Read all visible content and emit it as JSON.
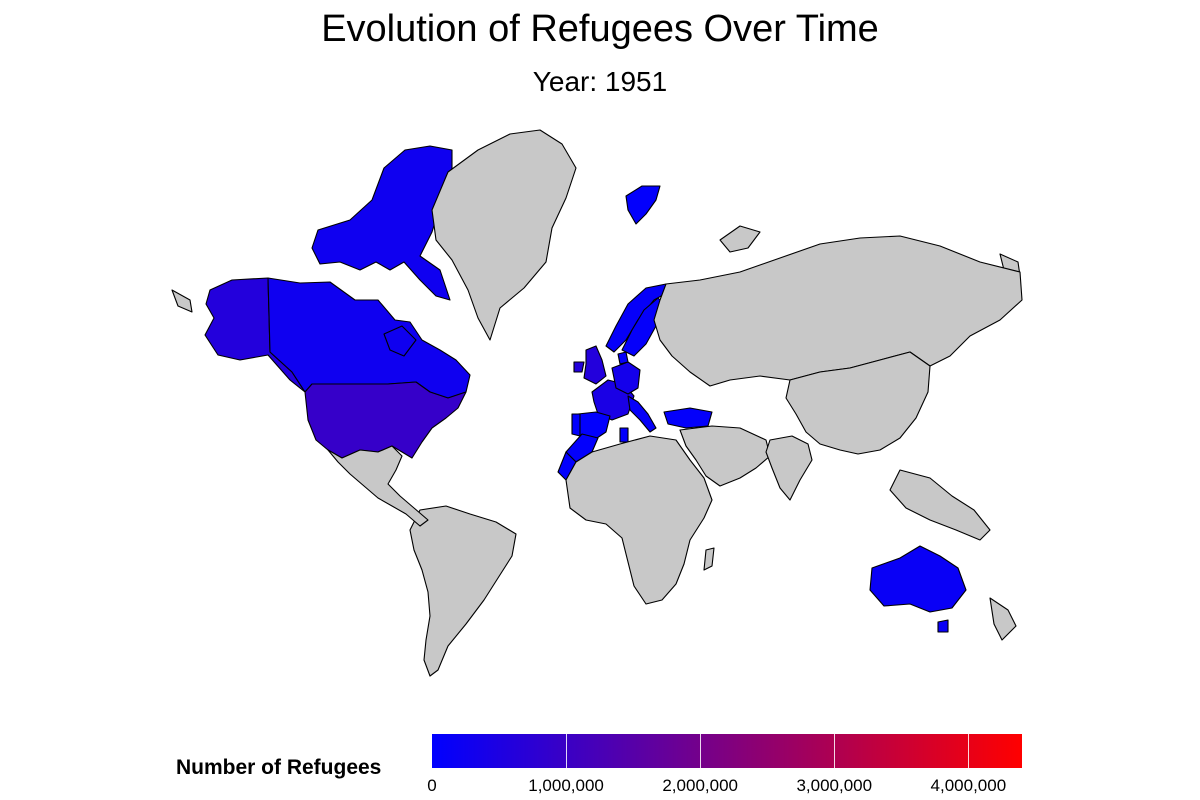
{
  "title": "Evolution of Refugees Over Time",
  "subtitle": "Year: 1951",
  "legend": {
    "title": "Number of Refugees",
    "low_color": "#0000ff",
    "high_color": "#ff0000",
    "min": 0,
    "max": 4400000,
    "ticks": [
      {
        "value": 0,
        "label": "0"
      },
      {
        "value": 1000000,
        "label": "1,000,000"
      },
      {
        "value": 2000000,
        "label": "2,000,000"
      },
      {
        "value": 3000000,
        "label": "3,000,000"
      },
      {
        "value": 4000000,
        "label": "4,000,000"
      }
    ]
  },
  "no_data_color": "#c8c8c8",
  "countries": [
    {
      "name": "Alaska",
      "value": 600000
    },
    {
      "name": "Canada",
      "value": 260000
    },
    {
      "name": "Canadian Arctic Islands",
      "value": 260000
    },
    {
      "name": "United States",
      "value": 930000
    },
    {
      "name": "United Kingdom",
      "value": 600000
    },
    {
      "name": "France",
      "value": 450000
    },
    {
      "name": "Germany",
      "value": 350000
    },
    {
      "name": "Spain",
      "value": 40000
    },
    {
      "name": "Portugal",
      "value": 30000
    },
    {
      "name": "Italy",
      "value": 100000
    },
    {
      "name": "Norway",
      "value": 110000
    },
    {
      "name": "Sweden",
      "value": 90000
    },
    {
      "name": "Denmark",
      "value": 80000
    },
    {
      "name": "Svalbard",
      "value": 50000
    },
    {
      "name": "Turkey",
      "value": 70000
    },
    {
      "name": "Morocco",
      "value": 60000
    },
    {
      "name": "Western Sahara",
      "value": 40000
    },
    {
      "name": "Tunisia",
      "value": 40000
    },
    {
      "name": "Australia",
      "value": 150000
    },
    {
      "name": "Tasmania",
      "value": 150000
    },
    {
      "name": "Greenland",
      "value": null
    },
    {
      "name": "Russia",
      "value": null
    },
    {
      "name": "China",
      "value": null
    },
    {
      "name": "Africa",
      "value": null
    },
    {
      "name": "South America",
      "value": null
    },
    {
      "name": "Central America",
      "value": null
    },
    {
      "name": "Middle East",
      "value": null
    },
    {
      "name": "India",
      "value": null
    }
  ]
}
